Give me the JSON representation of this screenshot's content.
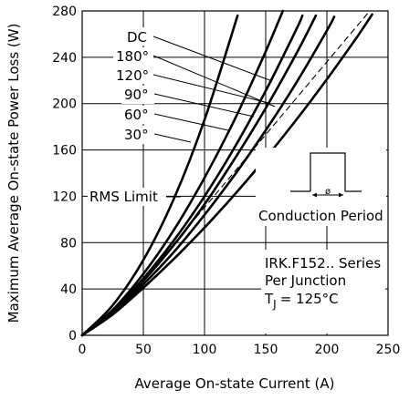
{
  "chart_data": {
    "type": "line",
    "xlabel": "Average On-state Current (A)",
    "ylabel": "Maximum Average On-state Power Loss (W)",
    "xlim": [
      0,
      250
    ],
    "ylim": [
      0,
      280
    ],
    "x_ticks": [
      0,
      50,
      100,
      150,
      200,
      250
    ],
    "y_ticks": [
      0,
      40,
      80,
      120,
      160,
      200,
      240,
      280
    ],
    "x_tick_labels": [
      "0",
      "50",
      "100",
      "150",
      "200",
      "250"
    ],
    "y_tick_labels": [
      "0",
      "40",
      "80",
      "120",
      "160",
      "200",
      "240",
      "280"
    ],
    "grid": true,
    "series": [
      {
        "name": "30°",
        "x": [
          0,
          25,
          50,
          75,
          100,
          127
        ],
        "y": [
          0,
          26,
          65,
          118,
          186,
          276
        ]
      },
      {
        "name": "60°",
        "x": [
          0,
          25,
          50,
          75,
          100,
          125,
          150,
          164
        ],
        "y": [
          0,
          22,
          53,
          91,
          136,
          187,
          245,
          280
        ]
      },
      {
        "name": "90°",
        "x": [
          0,
          25,
          50,
          75,
          100,
          125,
          150,
          175,
          180
        ],
        "y": [
          0,
          21,
          49,
          82,
          120,
          163,
          211,
          264,
          276
        ]
      },
      {
        "name": "120°",
        "x": [
          0,
          25,
          50,
          75,
          100,
          125,
          150,
          175,
          191
        ],
        "y": [
          0,
          20,
          47,
          78,
          113,
          153,
          196,
          243,
          276
        ]
      },
      {
        "name": "180°",
        "x": [
          0,
          25,
          50,
          75,
          100,
          125,
          150,
          175,
          200,
          206
        ],
        "y": [
          0,
          19,
          44,
          72,
          104,
          139,
          177,
          218,
          263,
          275
        ]
      },
      {
        "name": "DC",
        "x": [
          0,
          25,
          50,
          75,
          100,
          125,
          150,
          175,
          200,
          225,
          237
        ],
        "y": [
          0,
          18,
          41,
          66,
          93,
          122,
          153,
          186,
          221,
          258,
          277
        ]
      }
    ],
    "rms_limit": {
      "label": "RMS Limit",
      "x": [
        40,
        235
      ],
      "y": [
        35,
        280
      ]
    },
    "annotations": {
      "conduction_label": "Conduction Period",
      "conduction_symbol": "ø",
      "series_name": "IRK.F152.. Series",
      "per_junction": "Per Junction",
      "tj_prefix": "T",
      "tj_sub": "J",
      "tj_suffix": "= 125°C"
    }
  }
}
